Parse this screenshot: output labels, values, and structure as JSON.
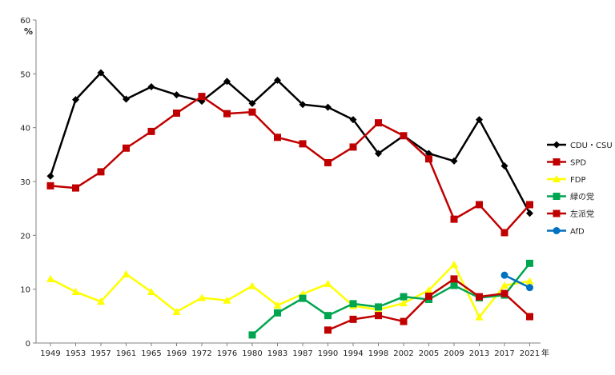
{
  "chart_data": {
    "type": "line",
    "ylabel": "%",
    "xlabel_suffix": "年",
    "ylim": [
      0,
      60
    ],
    "yticks": [
      0,
      10,
      20,
      30,
      40,
      50,
      60
    ],
    "x": [
      "1949",
      "1953",
      "1957",
      "1961",
      "1965",
      "1969",
      "1972",
      "1976",
      "1980",
      "1983",
      "1987",
      "1990",
      "1994",
      "1998",
      "2002",
      "2005",
      "2009",
      "2013",
      "2017",
      "2021"
    ],
    "grid": false,
    "legend": "right",
    "series": [
      {
        "name": "CDU・CSU",
        "color": "#000000",
        "marker": "diamond",
        "values": [
          31.0,
          45.2,
          50.2,
          45.3,
          47.6,
          46.1,
          44.9,
          48.6,
          44.5,
          48.8,
          44.3,
          43.8,
          41.5,
          35.2,
          38.5,
          35.2,
          33.8,
          41.5,
          32.9,
          24.1
        ]
      },
      {
        "name": "SPD",
        "color": "#c00000",
        "marker": "square",
        "values": [
          29.2,
          28.8,
          31.8,
          36.2,
          39.3,
          42.7,
          45.8,
          42.6,
          42.9,
          38.2,
          37.0,
          33.5,
          36.4,
          40.9,
          38.5,
          34.2,
          23.0,
          25.7,
          20.5,
          25.7
        ]
      },
      {
        "name": "FDP",
        "color": "#ffff00",
        "marker": "triangle",
        "values": [
          11.9,
          9.5,
          7.7,
          12.8,
          9.5,
          5.8,
          8.4,
          7.9,
          10.6,
          7.0,
          9.1,
          11.0,
          6.9,
          6.2,
          7.4,
          9.8,
          14.6,
          4.8,
          10.7,
          11.5
        ]
      },
      {
        "name": "緑の党",
        "color": "#00a550",
        "marker": "square",
        "values": [
          null,
          null,
          null,
          null,
          null,
          null,
          null,
          null,
          1.5,
          5.6,
          8.3,
          5.1,
          7.3,
          6.7,
          8.6,
          8.1,
          10.7,
          8.4,
          8.9,
          14.8
        ]
      },
      {
        "name": "左派党",
        "color": "#c00000",
        "marker": "square",
        "values": [
          null,
          null,
          null,
          null,
          null,
          null,
          null,
          null,
          null,
          null,
          null,
          2.4,
          4.4,
          5.1,
          4.0,
          8.7,
          11.9,
          8.6,
          9.2,
          4.9
        ]
      },
      {
        "name": "AfD",
        "color": "#0070c0",
        "marker": "circle",
        "values": [
          null,
          null,
          null,
          null,
          null,
          null,
          null,
          null,
          null,
          null,
          null,
          null,
          null,
          null,
          null,
          null,
          null,
          null,
          12.6,
          10.3
        ]
      }
    ]
  }
}
